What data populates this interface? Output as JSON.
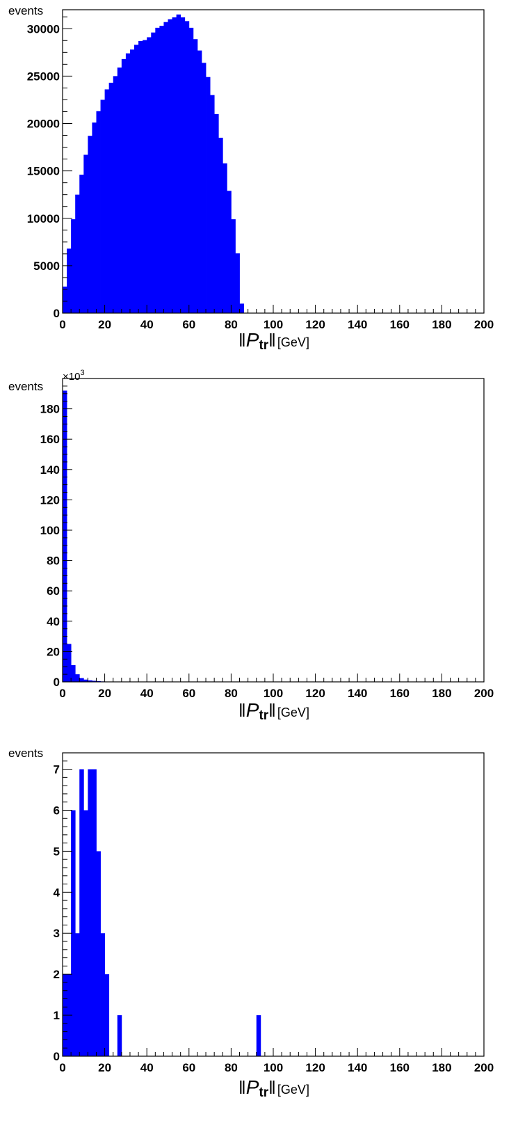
{
  "chart_data": [
    {
      "type": "bar",
      "ylabel": "events",
      "xlabel": {
        "symbol": "P",
        "subscript": "tr",
        "unit": "[GeV]"
      },
      "xlim": [
        0,
        200
      ],
      "ylim": [
        0,
        32000
      ],
      "x_ticks": [
        0,
        20,
        40,
        60,
        80,
        100,
        120,
        140,
        160,
        180,
        200
      ],
      "y_ticks": [
        0,
        5000,
        10000,
        15000,
        20000,
        25000,
        30000
      ],
      "y_multiplier": "",
      "bin_width": 2,
      "bin_starts": [
        0,
        2,
        4,
        6,
        8,
        10,
        12,
        14,
        16,
        18,
        20,
        22,
        24,
        26,
        28,
        30,
        32,
        34,
        36,
        38,
        40,
        42,
        44,
        46,
        48,
        50,
        52,
        54,
        56,
        58,
        60,
        62,
        64,
        66,
        68,
        70,
        72,
        74,
        76,
        78,
        80,
        82,
        84
      ],
      "values": [
        2800,
        6800,
        9900,
        12500,
        14600,
        16700,
        18700,
        20100,
        21300,
        22500,
        23600,
        24300,
        25000,
        25900,
        26800,
        27400,
        27800,
        28300,
        28700,
        28800,
        29100,
        29600,
        30100,
        30300,
        30700,
        31000,
        31200,
        31500,
        31200,
        30800,
        30100,
        28900,
        27700,
        26400,
        24900,
        23000,
        21000,
        18500,
        15800,
        12900,
        9900,
        6300,
        1000
      ],
      "grid": false
    },
    {
      "type": "bar",
      "ylabel": "events",
      "xlabel": {
        "symbol": "P",
        "subscript": "tr",
        "unit": "[GeV]"
      },
      "xlim": [
        0,
        200
      ],
      "ylim": [
        0,
        200
      ],
      "x_ticks": [
        0,
        20,
        40,
        60,
        80,
        100,
        120,
        140,
        160,
        180,
        200
      ],
      "y_ticks": [
        0,
        20,
        40,
        60,
        80,
        100,
        120,
        140,
        160,
        180
      ],
      "y_multiplier": {
        "base": "×10",
        "exponent": "3"
      },
      "bin_width": 2,
      "bin_starts": [
        0,
        2,
        4,
        6,
        8,
        10,
        12,
        14,
        16,
        18,
        20
      ],
      "values": [
        192,
        25,
        11,
        5,
        2.5,
        1.5,
        1,
        0.7,
        0.5,
        0.3,
        0.2
      ],
      "grid": false
    },
    {
      "type": "bar",
      "ylabel": "events",
      "xlabel": {
        "symbol": "P",
        "subscript": "tr",
        "unit": "[GeV]"
      },
      "xlim": [
        0,
        200
      ],
      "ylim": [
        0,
        7.4
      ],
      "x_ticks": [
        0,
        20,
        40,
        60,
        80,
        100,
        120,
        140,
        160,
        180,
        200
      ],
      "y_ticks": [
        0,
        1,
        2,
        3,
        4,
        5,
        6,
        7
      ],
      "y_multiplier": "",
      "bin_width": 2,
      "bin_starts": [
        0,
        2,
        4,
        6,
        8,
        10,
        12,
        14,
        16,
        18,
        20,
        26,
        92
      ],
      "values": [
        2,
        2,
        6,
        3,
        7,
        6,
        7,
        7,
        5,
        3,
        2,
        1,
        1
      ],
      "grid": false
    }
  ],
  "colors": {
    "bar_fill": "#0000ff",
    "axis": "#000000",
    "background": "#ffffff"
  }
}
